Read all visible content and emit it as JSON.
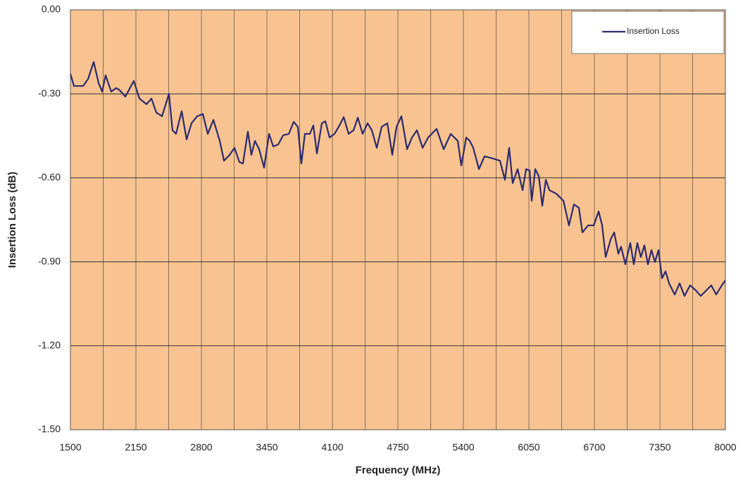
{
  "chart_data": {
    "type": "line",
    "x_label": "Frequency (MHz)",
    "y_label": "Insertion Loss (dB)",
    "x": [
      1500,
      1535,
      1626,
      1675,
      1731,
      1780,
      1815,
      1849,
      1905,
      1954,
      1989,
      2045,
      2129,
      2185,
      2255,
      2304,
      2353,
      2409,
      2478,
      2513,
      2548,
      2604,
      2653,
      2702,
      2758,
      2814,
      2863,
      2919,
      2982,
      3024,
      3080,
      3128,
      3177,
      3212,
      3261,
      3296,
      3331,
      3373,
      3422,
      3471,
      3513,
      3562,
      3611,
      3667,
      3716,
      3757,
      3792,
      3827,
      3876,
      3911,
      3946,
      3995,
      4030,
      4072,
      4121,
      4170,
      4212,
      4261,
      4310,
      4352,
      4400,
      4449,
      4491,
      4540,
      4589,
      4645,
      4694,
      4736,
      4785,
      4841,
      4890,
      4939,
      4995,
      5050,
      5134,
      5204,
      5274,
      5344,
      5379,
      5428,
      5463,
      5498,
      5554,
      5610,
      5693,
      5763,
      5812,
      5854,
      5889,
      5938,
      5987,
      6022,
      6057,
      6078,
      6113,
      6148,
      6183,
      6218,
      6253,
      6323,
      6393,
      6448,
      6497,
      6546,
      6581,
      6637,
      6693,
      6742,
      6777,
      6812,
      6861,
      6896,
      6938,
      6965,
      7007,
      7056,
      7091,
      7126,
      7161,
      7196,
      7231,
      7266,
      7301,
      7336,
      7371,
      7406,
      7441,
      7497,
      7546,
      7594,
      7650,
      7706,
      7755,
      7825,
      7860,
      7909,
      7965,
      8000
    ],
    "series": [
      {
        "name": "Insertion Loss",
        "color": "#2b2a6e",
        "values": [
          -0.229,
          -0.272,
          -0.272,
          -0.247,
          -0.186,
          -0.262,
          -0.292,
          -0.234,
          -0.292,
          -0.279,
          -0.287,
          -0.31,
          -0.254,
          -0.317,
          -0.337,
          -0.317,
          -0.367,
          -0.38,
          -0.3,
          -0.43,
          -0.443,
          -0.362,
          -0.463,
          -0.405,
          -0.38,
          -0.372,
          -0.443,
          -0.393,
          -0.468,
          -0.539,
          -0.518,
          -0.493,
          -0.544,
          -0.549,
          -0.435,
          -0.518,
          -0.468,
          -0.498,
          -0.564,
          -0.443,
          -0.488,
          -0.481,
          -0.448,
          -0.443,
          -0.4,
          -0.418,
          -0.549,
          -0.443,
          -0.443,
          -0.413,
          -0.513,
          -0.405,
          -0.398,
          -0.456,
          -0.443,
          -0.413,
          -0.383,
          -0.443,
          -0.43,
          -0.385,
          -0.443,
          -0.405,
          -0.43,
          -0.493,
          -0.418,
          -0.405,
          -0.518,
          -0.418,
          -0.38,
          -0.498,
          -0.456,
          -0.43,
          -0.493,
          -0.456,
          -0.425,
          -0.498,
          -0.443,
          -0.468,
          -0.556,
          -0.456,
          -0.468,
          -0.493,
          -0.569,
          -0.523,
          -0.531,
          -0.539,
          -0.607,
          -0.493,
          -0.619,
          -0.569,
          -0.644,
          -0.569,
          -0.574,
          -0.682,
          -0.569,
          -0.594,
          -0.7,
          -0.607,
          -0.644,
          -0.657,
          -0.682,
          -0.77,
          -0.695,
          -0.707,
          -0.795,
          -0.77,
          -0.77,
          -0.72,
          -0.77,
          -0.883,
          -0.82,
          -0.795,
          -0.871,
          -0.846,
          -0.909,
          -0.833,
          -0.909,
          -0.833,
          -0.883,
          -0.841,
          -0.909,
          -0.858,
          -0.901,
          -0.858,
          -0.959,
          -0.934,
          -0.977,
          -1.017,
          -0.977,
          -1.022,
          -0.984,
          -1.002,
          -1.022,
          -0.997,
          -0.984,
          -1.017,
          -0.984,
          -0.966
        ]
      }
    ],
    "xlim": [
      1500,
      8000
    ],
    "xticks": [
      1500,
      2150,
      2800,
      3450,
      4100,
      4750,
      5400,
      6050,
      6700,
      7350,
      8000
    ],
    "ylim": [
      -1.5,
      0
    ],
    "yticks": [
      {
        "value": -1.5,
        "label": "-1.50"
      },
      {
        "value": -1.2,
        "label": "-1.20"
      },
      {
        "value": -0.9,
        "label": "-0.90"
      },
      {
        "value": -0.6,
        "label": "-0.60"
      },
      {
        "value": -0.3,
        "label": "-0.30"
      },
      {
        "value": 0,
        "label": "0.00"
      }
    ],
    "grid": true,
    "legend": "top-right"
  }
}
